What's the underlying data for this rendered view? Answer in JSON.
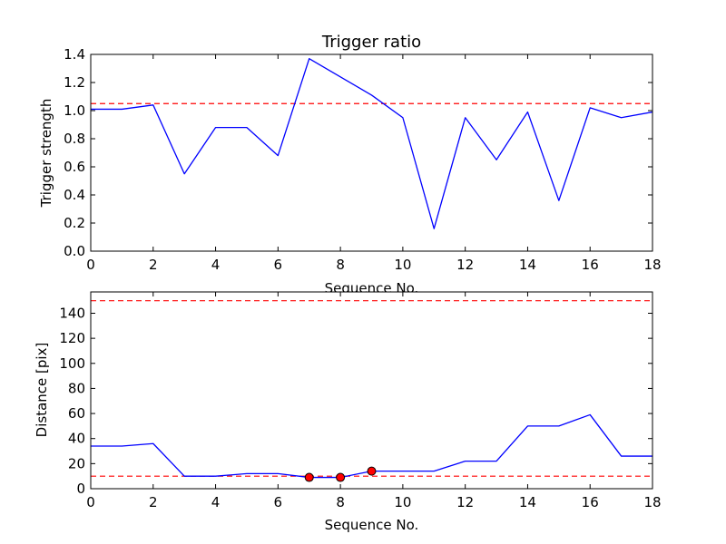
{
  "chart_data": [
    {
      "type": "line",
      "title": "Trigger ratio",
      "xlabel": "Sequence No.",
      "ylabel": "Trigger strength",
      "xlim": [
        0,
        18
      ],
      "ylim": [
        0,
        1.4
      ],
      "xticks": [
        0,
        2,
        4,
        6,
        8,
        10,
        12,
        14,
        16,
        18
      ],
      "yticks": [
        0.0,
        0.2,
        0.4,
        0.6,
        0.8,
        1.0,
        1.2,
        1.4
      ],
      "ytick_labels": [
        "0.0",
        "0.2",
        "0.4",
        "0.6",
        "0.8",
        "1.0",
        "1.2",
        "1.4"
      ],
      "grid": false,
      "series": [
        {
          "color": "#0000ff",
          "x": [
            0,
            1,
            2,
            3,
            4,
            5,
            6,
            7,
            8,
            9,
            10,
            11,
            12,
            13,
            14,
            15,
            16,
            17,
            18
          ],
          "values": [
            1.01,
            1.01,
            1.04,
            0.55,
            0.88,
            0.88,
            0.68,
            1.37,
            1.24,
            1.11,
            0.95,
            0.16,
            0.95,
            0.65,
            0.99,
            0.36,
            1.02,
            0.95,
            0.99
          ]
        }
      ],
      "reference_lines": [
        {
          "y": 1.05,
          "color": "#ff0000",
          "style": "dashed"
        }
      ]
    },
    {
      "type": "line",
      "title": "",
      "xlabel": "Sequence No.",
      "ylabel": "Distance [pix]",
      "xlim": [
        0,
        18
      ],
      "ylim": [
        0,
        157
      ],
      "xticks": [
        0,
        2,
        4,
        6,
        8,
        10,
        12,
        14,
        16,
        18
      ],
      "yticks": [
        0,
        20,
        40,
        60,
        80,
        100,
        120,
        140
      ],
      "ytick_labels": [
        "0",
        "20",
        "40",
        "60",
        "80",
        "100",
        "120",
        "140"
      ],
      "grid": false,
      "series": [
        {
          "color": "#0000ff",
          "x": [
            0,
            1,
            2,
            3,
            4,
            5,
            6,
            7,
            8,
            9,
            10,
            11,
            12,
            13,
            14,
            15,
            16,
            17,
            18
          ],
          "values": [
            34,
            34,
            36,
            10,
            10,
            12,
            12,
            9,
            9,
            14,
            14,
            14,
            22,
            22,
            50,
            50,
            59,
            26,
            26
          ]
        }
      ],
      "markers": {
        "color": "#ff0000",
        "points": [
          {
            "x": 7,
            "y": 9
          },
          {
            "x": 8,
            "y": 9
          },
          {
            "x": 9,
            "y": 14
          }
        ]
      },
      "reference_lines": [
        {
          "y": 150,
          "color": "#ff0000",
          "style": "dashed"
        },
        {
          "y": 10,
          "color": "#ff0000",
          "style": "dashed"
        }
      ]
    }
  ]
}
